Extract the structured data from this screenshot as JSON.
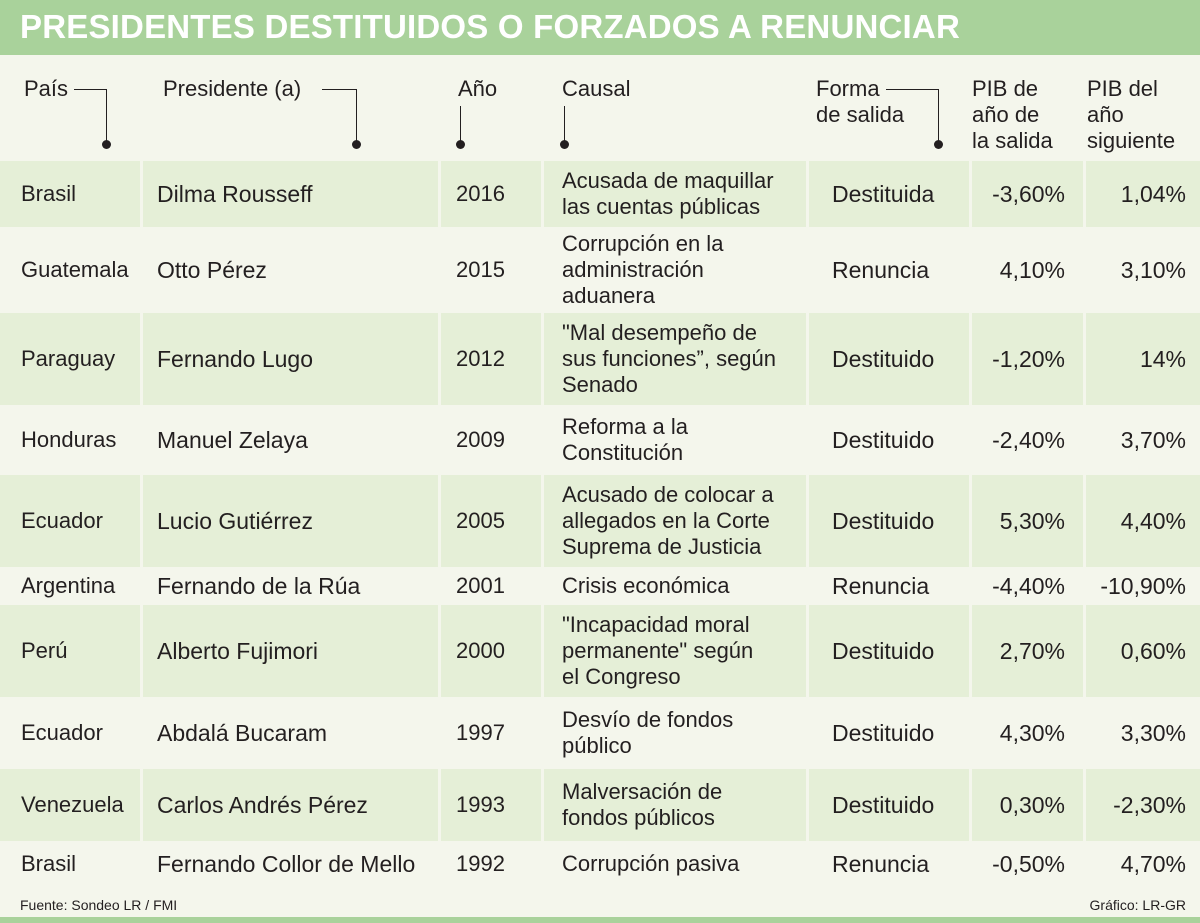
{
  "title": "PRESIDENTES DESTITUIDOS O FORZADOS A RENUNCIAR",
  "headers": {
    "pais": "País",
    "presidente": "Presidente (a)",
    "anio": "Año",
    "causal": "Causal",
    "forma": [
      "Forma",
      "de salida"
    ],
    "pib_salida": [
      "PIB de",
      "año de",
      "la salida"
    ],
    "pib_siguiente": [
      "PIB del",
      "año",
      "siguiente"
    ]
  },
  "rows": [
    {
      "pais": "Brasil",
      "presidente": "Dilma Rousseff",
      "anio": "2016",
      "causal": [
        "Acusada de maquillar",
        "las cuentas públicas"
      ],
      "forma": "Destituida",
      "pib_salida": "-3,60%",
      "pib_siguiente": "1,04%"
    },
    {
      "pais": "Guatemala",
      "presidente": "Otto Pérez",
      "anio": "2015",
      "causal": [
        "Corrupción en la",
        "administración",
        "aduanera"
      ],
      "forma": "Renuncia",
      "pib_salida": "4,10%",
      "pib_siguiente": "3,10%"
    },
    {
      "pais": "Paraguay",
      "presidente": "Fernando Lugo",
      "anio": "2012",
      "causal": [
        "\"Mal desempeño de",
        "sus funciones”, según",
        "Senado"
      ],
      "forma": "Destituido",
      "pib_salida": "-1,20%",
      "pib_siguiente": "14%"
    },
    {
      "pais": "Honduras",
      "presidente": "Manuel Zelaya",
      "anio": "2009",
      "causal": [
        "Reforma a la",
        "Constitución"
      ],
      "forma": "Destituido",
      "pib_salida": "-2,40%",
      "pib_siguiente": "3,70%"
    },
    {
      "pais": "Ecuador",
      "presidente": "Lucio Gutiérrez",
      "anio": "2005",
      "causal": [
        "Acusado de colocar a",
        "allegados en la Corte",
        "Suprema de Justicia"
      ],
      "forma": "Destituido",
      "pib_salida": "5,30%",
      "pib_siguiente": "4,40%"
    },
    {
      "pais": "Argentina",
      "presidente": "Fernando de la Rúa",
      "anio": "2001",
      "causal": [
        "Crisis económica"
      ],
      "forma": "Renuncia",
      "pib_salida": "-4,40%",
      "pib_siguiente": "-10,90%"
    },
    {
      "pais": "Perú",
      "presidente": "Alberto Fujimori",
      "anio": "2000",
      "causal": [
        "\"Incapacidad moral",
        "permanente\" según",
        "el Congreso"
      ],
      "forma": "Destituido",
      "pib_salida": "2,70%",
      "pib_siguiente": "0,60%"
    },
    {
      "pais": "Ecuador",
      "presidente": "Abdalá Bucaram",
      "anio": "1997",
      "causal": [
        "Desvío de fondos",
        "público"
      ],
      "forma": "Destituido",
      "pib_salida": "4,30%",
      "pib_siguiente": "3,30%"
    },
    {
      "pais": "Venezuela",
      "presidente": "Carlos Andrés Pérez",
      "anio": "1993",
      "causal": [
        "Malversación de",
        "fondos públicos"
      ],
      "forma": "Destituido",
      "pib_salida": "0,30%",
      "pib_siguiente": "-2,30%"
    },
    {
      "pais": "Brasil",
      "presidente": "Fernando Collor de Mello",
      "anio": "1992",
      "causal": [
        "Corrupción pasiva"
      ],
      "forma": "Renuncia",
      "pib_salida": "-0,50%",
      "pib_siguiente": "4,70%"
    }
  ],
  "footer": {
    "source": "Fuente: Sondeo LR / FMI",
    "credit": "Gráfico: LR-GR"
  },
  "colors": {
    "title_bar": "#a9d29b",
    "row_shade": "#e5efd7",
    "background": "#f4f6ec"
  }
}
